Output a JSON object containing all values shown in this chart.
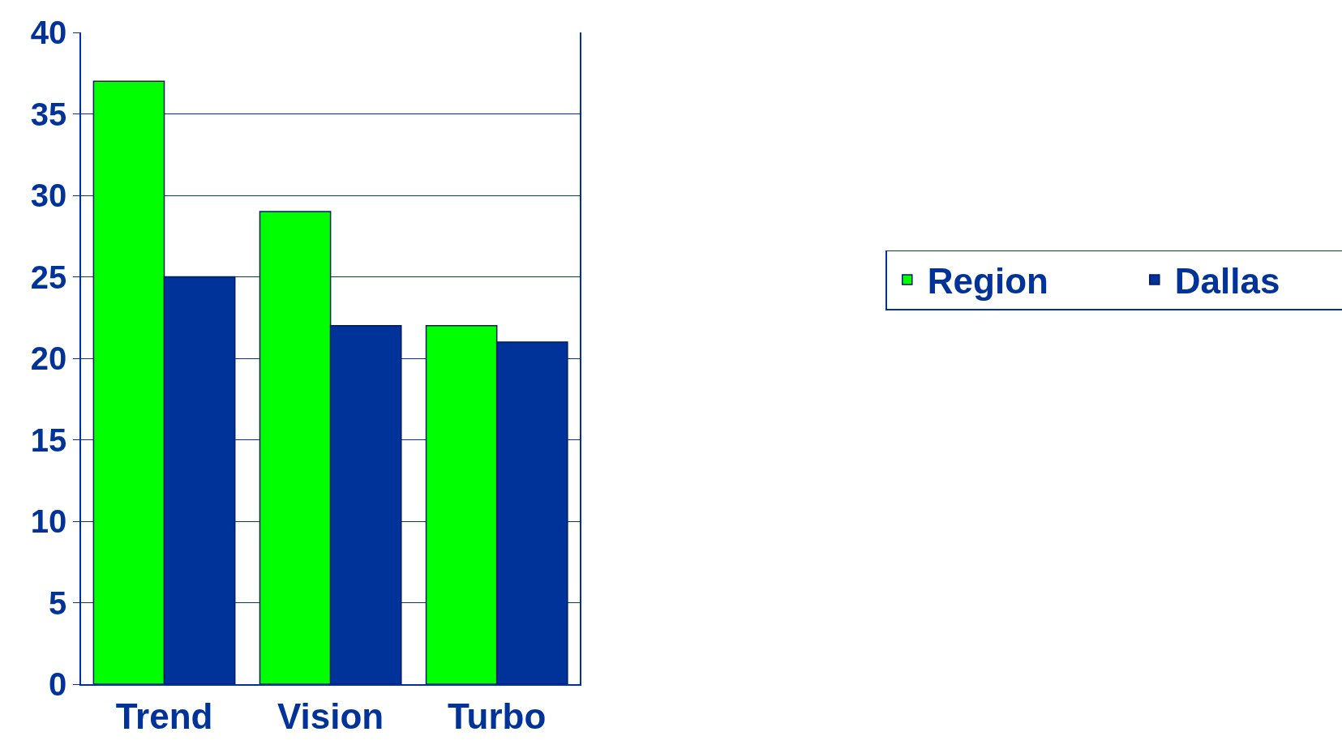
{
  "chart_data": {
    "type": "bar",
    "categories": [
      "Trend",
      "Vision",
      "Turbo"
    ],
    "series": [
      {
        "name": "Region",
        "color": "#00ff00",
        "values": [
          37,
          29,
          22
        ]
      },
      {
        "name": "Dallas",
        "color": "#003399",
        "values": [
          25,
          22,
          21
        ]
      }
    ],
    "ylim": [
      0,
      40
    ],
    "yticks": [
      0,
      5,
      10,
      15,
      20,
      25,
      30,
      35,
      40
    ],
    "grid": "y",
    "legend": "right"
  }
}
